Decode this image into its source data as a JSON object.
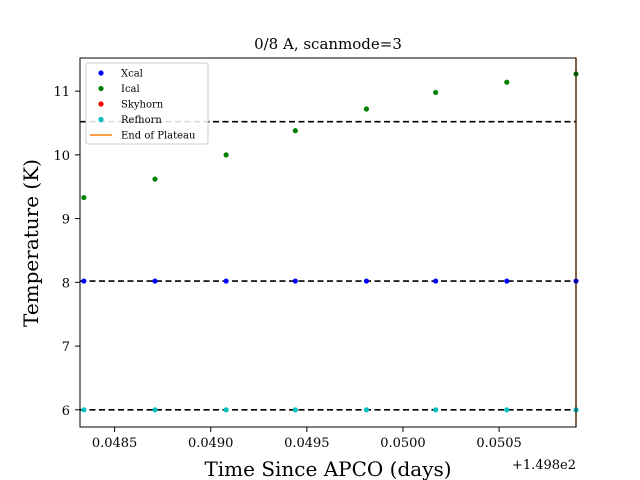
{
  "chart_data": {
    "type": "scatter",
    "title": "0/8 A, scanmode=3",
    "xlabel": "Time Since APCO (days)",
    "ylabel": "Temperature (K)",
    "x_offset_label": "+1.498e2",
    "xlim": [
      0.04832,
      0.0509
    ],
    "ylim": [
      5.73,
      11.52
    ],
    "x_ticks": [
      0.0485,
      0.049,
      0.0495,
      0.05,
      0.0505
    ],
    "x_tick_labels": [
      "0.0485",
      "0.0490",
      "0.0495",
      "0.0500",
      "0.0505"
    ],
    "y_ticks": [
      6,
      7,
      8,
      9,
      10,
      11
    ],
    "y_tick_labels": [
      "6",
      "7",
      "8",
      "9",
      "10",
      "11"
    ],
    "hlines": [
      10.52,
      8.02,
      6.0
    ],
    "vline": 0.0509,
    "legend_position": "upper-left",
    "series": [
      {
        "name": "Xcal",
        "color": "#0000ff",
        "x": [
          0.04834,
          0.04871,
          0.04908,
          0.04944,
          0.04981,
          0.05017,
          0.05054,
          0.0509
        ],
        "y": [
          8.02,
          8.02,
          8.02,
          8.02,
          8.02,
          8.02,
          8.02,
          8.02
        ]
      },
      {
        "name": "Ical",
        "color": "#008000",
        "x": [
          0.04834,
          0.04871,
          0.04908,
          0.04944,
          0.04981,
          0.05017,
          0.05054,
          0.0509
        ],
        "y": [
          9.33,
          9.62,
          10.0,
          10.38,
          10.72,
          10.98,
          11.14,
          11.27
        ]
      },
      {
        "name": "Skyhorn",
        "color": "#ff0000",
        "x": [],
        "y": []
      },
      {
        "name": "Refhorn",
        "color": "#00bfbf",
        "x": [
          0.04834,
          0.04871,
          0.04908,
          0.04944,
          0.04981,
          0.05017,
          0.05054,
          0.0509
        ],
        "y": [
          6.0,
          6.0,
          6.0,
          6.0,
          6.0,
          6.0,
          6.0,
          6.0
        ]
      }
    ],
    "end_of_plateau": {
      "name": "End of Plateau",
      "color": "#ff7f0e"
    }
  }
}
